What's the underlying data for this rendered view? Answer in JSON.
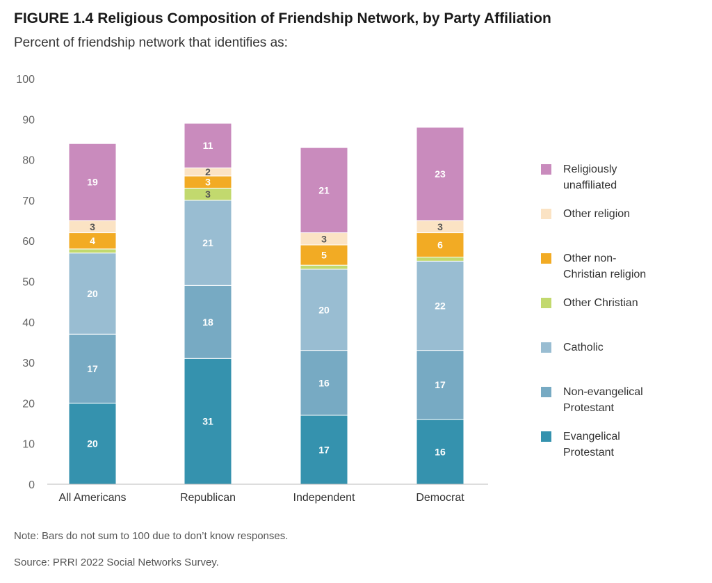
{
  "title": "FIGURE 1.4  Religious Composition of Friendship Network, by Party Affiliation",
  "subtitle": "Percent of friendship network that identifies as:",
  "note": "Note: Bars do not sum to 100 due to don’t know responses.",
  "source": "Source: PRRI 2022 Social Networks Survey.",
  "chart_data": {
    "type": "bar",
    "stacked": true,
    "title": "FIGURE 1.4  Religious Composition of Friendship Network, by Party Affiliation",
    "subtitle": "Percent of friendship network that identifies as:",
    "xlabel": "",
    "ylabel": "",
    "ylim": [
      0,
      100
    ],
    "yticks": [
      0,
      10,
      20,
      30,
      40,
      50,
      60,
      70,
      80,
      90,
      100
    ],
    "grid": false,
    "legend_position": "right",
    "categories": [
      "All Americans",
      "Republican",
      "Independent",
      "Democrat"
    ],
    "series": [
      {
        "name": "Evangelical Protestant",
        "color": "#3592ae",
        "label_color": "#ffffff",
        "values": [
          20,
          31,
          17,
          16
        ]
      },
      {
        "name": "Non-evangelical Protestant",
        "color": "#77aac3",
        "label_color": "#ffffff",
        "values": [
          17,
          18,
          16,
          17
        ]
      },
      {
        "name": "Catholic",
        "color": "#99bdd2",
        "label_color": "#ffffff",
        "values": [
          20,
          21,
          20,
          22
        ]
      },
      {
        "name": "Other Christian",
        "color": "#c2d96e",
        "label_color": "#555555",
        "values": [
          1,
          3,
          1,
          1
        ]
      },
      {
        "name": "Other non-Christian religion",
        "color": "#f2ab24",
        "label_color": "#ffffff",
        "values": [
          4,
          3,
          5,
          6
        ]
      },
      {
        "name": "Other religion",
        "color": "#fbe3c4",
        "label_color": "#555555",
        "values": [
          3,
          2,
          3,
          3
        ]
      },
      {
        "name": "Religiously unaffiliated",
        "color": "#c98bbd",
        "label_color": "#ffffff",
        "values": [
          19,
          11,
          21,
          23
        ]
      }
    ],
    "data_labels": [
      [
        "20",
        "31",
        "17",
        "16"
      ],
      [
        "17",
        "18",
        "16",
        "17"
      ],
      [
        "20",
        "21",
        "20",
        "22"
      ],
      [
        "",
        "3",
        "",
        ""
      ],
      [
        "4",
        "3",
        "5",
        "6"
      ],
      [
        "3",
        "2",
        "3",
        "3"
      ],
      [
        "19",
        "11",
        "21",
        "23"
      ]
    ],
    "legend": [
      {
        "lines": [
          "Religiously",
          "unaffiliated"
        ],
        "color": "#c98bbd",
        "icon": "swatch-square"
      },
      {
        "lines": [
          "Other religion"
        ],
        "color": "#fbe3c4",
        "icon": "swatch-square"
      },
      {
        "lines": [
          "Other non-",
          "Christian religion"
        ],
        "color": "#f2ab24",
        "icon": "swatch-square"
      },
      {
        "lines": [
          "Other Christian"
        ],
        "color": "#c2d96e",
        "icon": "swatch-square"
      },
      {
        "lines": [
          "Catholic"
        ],
        "color": "#99bdd2",
        "icon": "swatch-square"
      },
      {
        "lines": [
          "Non-evangelical",
          "Protestant"
        ],
        "color": "#77aac3",
        "icon": "swatch-square"
      },
      {
        "lines": [
          "Evangelical",
          "Protestant"
        ],
        "color": "#3592ae",
        "icon": "swatch-square"
      }
    ]
  }
}
